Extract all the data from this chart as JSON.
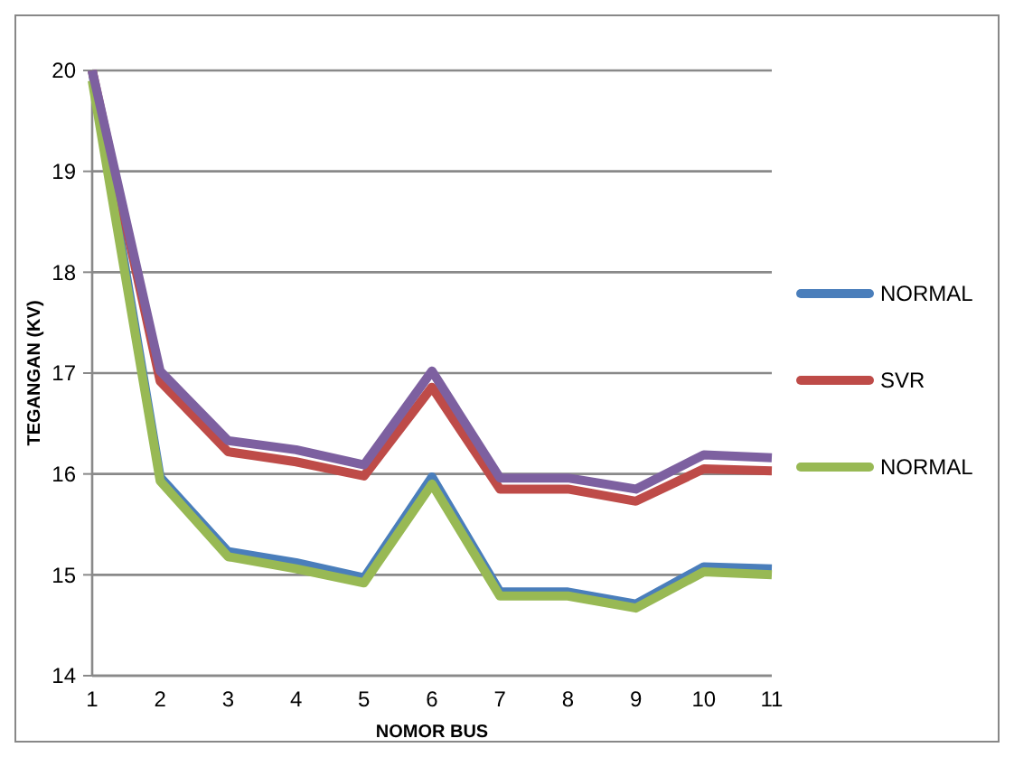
{
  "chart_data": {
    "type": "line",
    "xlabel": "NOMOR BUS",
    "ylabel": "TEGANGAN (KV)",
    "categories": [
      "1",
      "2",
      "3",
      "4",
      "5",
      "6",
      "7",
      "8",
      "9",
      "10",
      "11"
    ],
    "series": [
      {
        "name": "NORMAL",
        "color": "#4a7ebb",
        "values": [
          20,
          15.97,
          15.23,
          15.12,
          14.97,
          15.97,
          14.83,
          14.83,
          14.71,
          15.08,
          15.06
        ]
      },
      {
        "name": "SVR",
        "color": "#be4b48",
        "values": [
          20,
          16.92,
          16.22,
          16.12,
          15.98,
          16.86,
          15.85,
          15.85,
          15.73,
          16.05,
          16.03
        ]
      },
      {
        "name": "NORMAL",
        "color": "#98b954",
        "values": [
          19.9,
          15.93,
          15.18,
          15.06,
          14.92,
          15.9,
          14.79,
          14.79,
          14.67,
          15.03,
          15.0
        ]
      },
      {
        "color": "#7d60a0",
        "values": [
          20,
          17.02,
          16.33,
          16.24,
          16.09,
          17.02,
          15.96,
          15.96,
          15.85,
          16.19,
          16.16
        ]
      }
    ],
    "ylim": [
      14,
      20
    ],
    "yticks": [
      14,
      15,
      16,
      17,
      18,
      19,
      20
    ],
    "grid": "y",
    "legend": "right",
    "line_style": "solid"
  }
}
